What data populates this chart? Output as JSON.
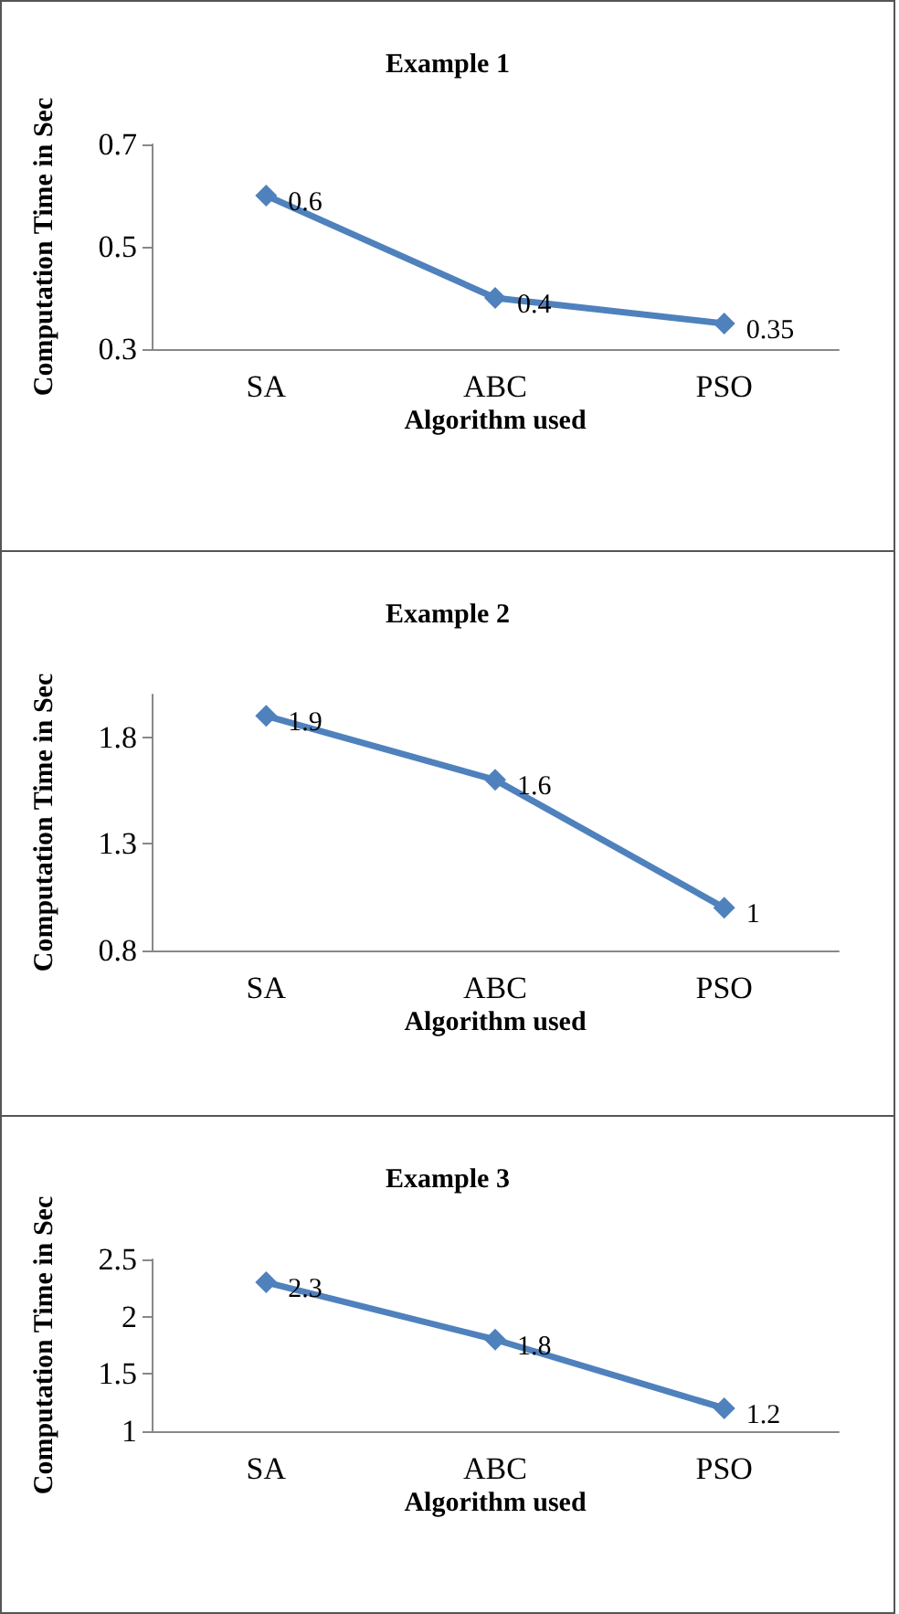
{
  "chart_data": [
    {
      "type": "line",
      "title": "Example 1",
      "xlabel": "Algorithm used",
      "ylabel": "Computation Time in Sec",
      "categories": [
        "SA",
        "ABC",
        "PSO"
      ],
      "series": [
        {
          "color": "#4f81bd",
          "values": [
            0.6,
            0.4,
            0.35
          ]
        }
      ],
      "ylim": [
        0.3,
        0.7
      ],
      "yticks": [
        0.3,
        0.5,
        0.7
      ],
      "marker": "diamond",
      "data_labels": true,
      "grid": false
    },
    {
      "type": "line",
      "title": "Example 2",
      "xlabel": "Algorithm used",
      "ylabel": "Computation Time in Sec",
      "categories": [
        "SA",
        "ABC",
        "PSO"
      ],
      "series": [
        {
          "color": "#4f81bd",
          "values": [
            1.9,
            1.6,
            1
          ]
        }
      ],
      "ylim": [
        0.8,
        2.0
      ],
      "yticks": [
        0.8,
        1.3,
        1.8
      ],
      "marker": "diamond",
      "data_labels": true,
      "grid": false
    },
    {
      "type": "line",
      "title": "Example 3",
      "xlabel": "Algorithm used",
      "ylabel": "Computation Time in Sec",
      "categories": [
        "SA",
        "ABC",
        "PSO"
      ],
      "series": [
        {
          "color": "#4f81bd",
          "values": [
            2.3,
            1.8,
            1.2
          ]
        }
      ],
      "ylim": [
        1,
        2.5
      ],
      "yticks": [
        1,
        1.5,
        2,
        2.5
      ],
      "marker": "diamond",
      "data_labels": true,
      "grid": false
    }
  ]
}
